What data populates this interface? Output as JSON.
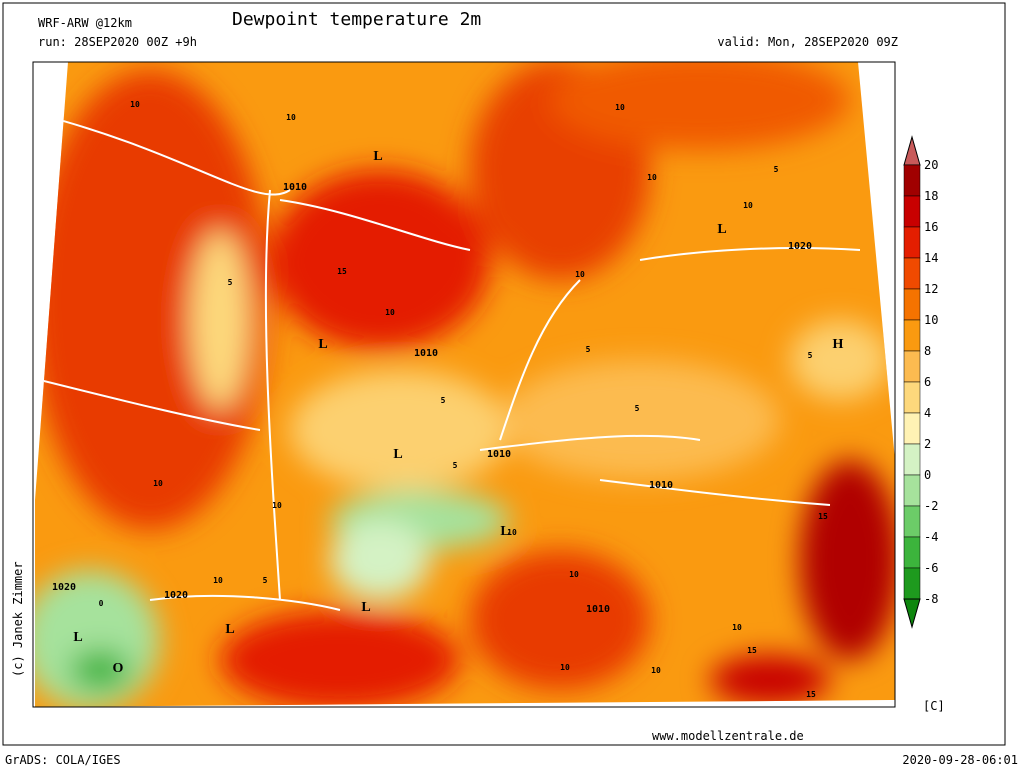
{
  "header": {
    "model": "WRF-ARW @12km",
    "title": "Dewpoint temperature 2m",
    "run": "run: 28SEP2020 00Z +9h",
    "valid": "valid: Mon, 28SEP2020 09Z"
  },
  "map": {
    "labels": [
      "L",
      "L",
      "L",
      "H",
      "L",
      "L",
      "L",
      "L",
      "L",
      "O",
      "1010",
      "1020",
      "1010",
      "1010",
      "1010",
      "1010",
      "1020",
      "1020",
      "10",
      "10",
      "10",
      "10",
      "10",
      "15",
      "5",
      "10",
      "5",
      "10",
      "5",
      "5",
      "5",
      "10",
      "10",
      "10",
      "5",
      "0",
      "10",
      "10",
      "10",
      "15",
      "15",
      "10",
      "15",
      "10",
      "5",
      "5"
    ]
  },
  "colorbar": {
    "levels": [
      20,
      18,
      16,
      14,
      12,
      10,
      8,
      6,
      4,
      2,
      0,
      -2,
      -4,
      -6,
      -8
    ],
    "colors": [
      "#c85a5a",
      "#a00000",
      "#c80000",
      "#e41e00",
      "#f04a00",
      "#f57300",
      "#fa9a10",
      "#fcbb50",
      "#fdd87c",
      "#fff2b4",
      "#d4f2c4",
      "#a6e29c",
      "#6ccc68",
      "#3cb43c",
      "#1e9a1e",
      "#0e860e"
    ],
    "unit": "[C]"
  },
  "footer": {
    "credit": "(c) Janek Zimmer",
    "website": "www.modellzentrale.de",
    "software": "GrADS: COLA/IGES",
    "timestamp": "2020-09-28-06:01"
  }
}
